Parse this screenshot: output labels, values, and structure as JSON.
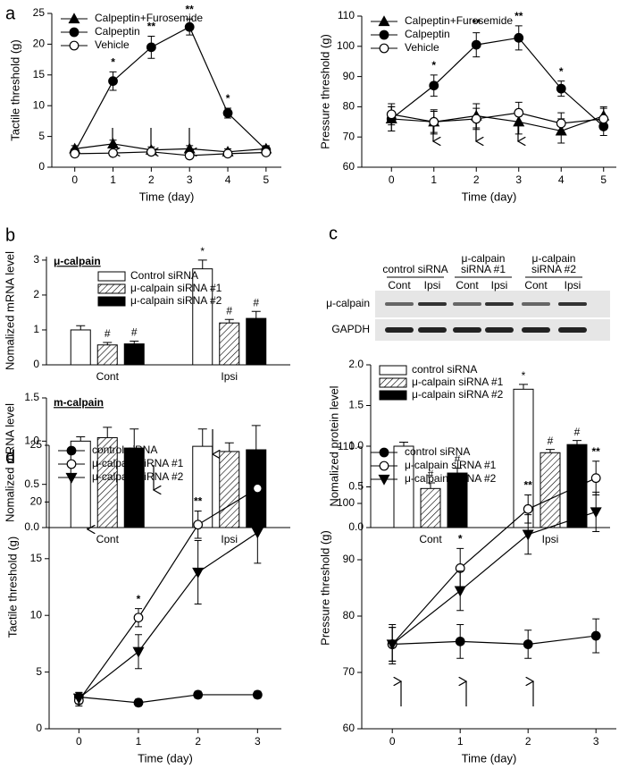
{
  "chart_data": [
    {
      "type": "line",
      "panel_label": "a",
      "ylabel": "Tactile threshold (g)",
      "xlabel": "Time (day)",
      "x": [
        0,
        1,
        2,
        3,
        4,
        5
      ],
      "xlim": [
        -0.6,
        5.4
      ],
      "xticks": [
        0,
        1,
        2,
        3,
        4,
        5
      ],
      "ylim": [
        0,
        25
      ],
      "yticks": [
        0,
        5,
        10,
        15,
        20,
        25
      ],
      "legend": "top-left",
      "series": [
        {
          "name": "Calpeptin+Furosemide",
          "color": "#000000",
          "marker": "triangle",
          "filled": true,
          "values": [
            3,
            3.8,
            2.8,
            3,
            2.5,
            3
          ],
          "errors": [
            0.5,
            0.6,
            0.5,
            0.5,
            0.5,
            0.5
          ],
          "annotations": [
            null,
            null,
            null,
            null,
            null,
            null
          ]
        },
        {
          "name": "Calpeptin",
          "color": "#000000",
          "marker": "circle",
          "filled": true,
          "values": [
            2.5,
            14,
            19.5,
            22.8,
            8.8,
            2.8
          ],
          "errors": [
            0.5,
            1.5,
            1.8,
            1.3,
            0.8,
            0.5
          ],
          "annotations": [
            null,
            "*",
            "**",
            "**",
            "*",
            null
          ]
        },
        {
          "name": "Vehicle",
          "color": "#000000",
          "marker": "circle",
          "filled": false,
          "values": [
            2.2,
            2.3,
            2.5,
            1.9,
            2.2,
            2.4
          ],
          "errors": [
            0.4,
            0.4,
            0.4,
            0.4,
            0.4,
            0.4
          ],
          "annotations": [
            null,
            null,
            null,
            null,
            null,
            null
          ]
        }
      ]
    },
    {
      "type": "line",
      "ylabel": "Pressure threshold (g)",
      "xlabel": "Time (day)",
      "x": [
        0,
        1,
        2,
        3,
        4,
        5
      ],
      "xlim": [
        -0.7,
        5.3
      ],
      "xticks": [
        0,
        1,
        2,
        3,
        4,
        5
      ],
      "ylim": [
        60,
        110
      ],
      "yticks": [
        60,
        70,
        80,
        90,
        100,
        110
      ],
      "legend": "top-left",
      "series": [
        {
          "name": "Calpeptin+Furosemide",
          "color": "#000000",
          "marker": "triangle",
          "filled": true,
          "values": [
            76,
            75,
            77,
            75,
            72,
            77
          ],
          "errors": [
            4,
            4,
            4,
            4,
            4,
            3
          ],
          "annotations": [
            null,
            null,
            null,
            null,
            null,
            null
          ]
        },
        {
          "name": "Calpeptin",
          "color": "#000000",
          "marker": "circle",
          "filled": true,
          "values": [
            76,
            87,
            100.5,
            102.8,
            86,
            73.5
          ],
          "errors": [
            4,
            3.5,
            4,
            4,
            2.5,
            3
          ],
          "annotations": [
            null,
            "*",
            "**",
            "**",
            "*",
            null
          ]
        },
        {
          "name": "Vehicle",
          "color": "#000000",
          "marker": "circle",
          "filled": false,
          "values": [
            77.5,
            75,
            76,
            78,
            74.5,
            76
          ],
          "errors": [
            3.5,
            3.5,
            3.5,
            3.5,
            3.5,
            3.5
          ],
          "annotations": [
            null,
            null,
            null,
            null,
            null,
            null
          ]
        }
      ]
    },
    {
      "type": "bar",
      "panel_label": "b",
      "title": "μ-calpain",
      "ylabel": "Nomalized mRNA level",
      "categories": [
        "Cont",
        "Ipsi"
      ],
      "ylim": [
        0,
        3.1
      ],
      "yticks": [
        0,
        1,
        2,
        3
      ],
      "legend": "top-left",
      "series": [
        {
          "name": "Control siRNA",
          "color": "#ffffff",
          "hatch": false,
          "values": [
            1.0,
            2.75
          ],
          "errors": [
            0.12,
            0.25
          ],
          "annotations": [
            null,
            "*"
          ]
        },
        {
          "name": "μ-calpain siRNA #1",
          "color": "#ffffff",
          "hatch": true,
          "values": [
            0.57,
            1.2
          ],
          "errors": [
            0.07,
            0.1
          ],
          "annotations": [
            "#",
            "#"
          ]
        },
        {
          "name": "μ-calpain siRNA #2",
          "color": "#000000",
          "hatch": false,
          "values": [
            0.6,
            1.33
          ],
          "errors": [
            0.08,
            0.2
          ],
          "annotations": [
            "#",
            "#"
          ]
        }
      ]
    },
    {
      "type": "bar",
      "title": "m-calpain",
      "ylabel": "Nomalized mRNA level",
      "categories": [
        "Cont",
        "Ipsi"
      ],
      "ylim": [
        0,
        1.5
      ],
      "yticks": [
        {
          "value": 0,
          "label": "0.0"
        },
        {
          "value": 0.5,
          "label": "0.5"
        },
        {
          "value": 1,
          "label": "1.0"
        },
        1.5
      ],
      "legend": false,
      "series": [
        {
          "color": "#ffffff",
          "hatch": false,
          "values": [
            1.0,
            0.94
          ],
          "errors": [
            0.05,
            0.2
          ]
        },
        {
          "color": "#ffffff",
          "hatch": true,
          "values": [
            1.04,
            0.88
          ],
          "errors": [
            0.12,
            0.1
          ]
        },
        {
          "color": "#000000",
          "hatch": false,
          "values": [
            0.92,
            0.9
          ],
          "errors": [
            0.22,
            0.28
          ]
        }
      ]
    },
    {
      "type": "bar",
      "panel_label": "c",
      "ylabel": "Nomalized protein level",
      "categories": [
        "Cont",
        "Ipsi"
      ],
      "ylim": [
        0,
        2.0
      ],
      "yticks": [
        {
          "value": 0,
          "label": "0.0"
        },
        {
          "value": 0.5,
          "label": "0.5"
        },
        {
          "value": 1,
          "label": "1.0"
        },
        1.5,
        {
          "value": 2,
          "label": "2.0"
        }
      ],
      "legend": "top-left",
      "series": [
        {
          "name": "control siRNA",
          "color": "#ffffff",
          "hatch": false,
          "values": [
            1.0,
            1.7
          ],
          "errors": [
            0.05,
            0.06
          ],
          "annotations": [
            null,
            "*"
          ]
        },
        {
          "name": "μ-calpain siRNA #1",
          "color": "#ffffff",
          "hatch": true,
          "values": [
            0.48,
            0.92
          ],
          "errors": [
            0.07,
            0.04
          ],
          "annotations": [
            "#",
            "#"
          ]
        },
        {
          "name": "μ-calpain siRNA #2",
          "color": "#000000",
          "hatch": false,
          "values": [
            0.67,
            1.02
          ],
          "errors": [
            0.06,
            0.05
          ],
          "annotations": [
            "#",
            "#"
          ]
        }
      ]
    },
    {
      "type": "line",
      "panel_label": "d",
      "ylabel": "Tactile threshold (g)",
      "xlabel": "Time (day)",
      "x": [
        0,
        1,
        2,
        3
      ],
      "xlim": [
        -0.5,
        3.4
      ],
      "xticks": [
        0,
        1,
        2,
        3
      ],
      "ylim": [
        0,
        25
      ],
      "yticks": [
        0,
        5,
        10,
        15,
        20,
        25
      ],
      "legend": "top-left",
      "series": [
        {
          "name": "control siRNA",
          "color": "#000000",
          "marker": "circle",
          "filled": true,
          "values": [
            2.8,
            2.3,
            3,
            3
          ],
          "errors": [
            0.4,
            0.3,
            0.3,
            0.3
          ],
          "annotations": [
            null,
            null,
            null,
            null
          ]
        },
        {
          "name": "μ-calpain siRNA #1",
          "color": "#000000",
          "marker": "circle",
          "filled": false,
          "values": [
            2.5,
            9.8,
            18,
            21.2
          ],
          "errors": [
            0.5,
            0.8,
            1.2,
            2
          ],
          "annotations": [
            null,
            "*",
            "**",
            "**"
          ]
        },
        {
          "name": "μ-calpain siRNA #2",
          "color": "#000000",
          "marker": "triangle-down",
          "filled": true,
          "values": [
            2.7,
            6.8,
            13.8,
            17.3
          ],
          "errors": [
            0.5,
            1.5,
            2.8,
            2.7
          ],
          "annotations": [
            null,
            null,
            null,
            null
          ]
        }
      ]
    },
    {
      "type": "line",
      "ylabel": "Pressure threshold (g)",
      "xlabel": "Time (day)",
      "x": [
        0,
        1,
        2,
        3
      ],
      "xlim": [
        -0.45,
        3.3
      ],
      "xticks": [
        0,
        1,
        2,
        3
      ],
      "ylim": [
        60,
        110
      ],
      "yticks": [
        60,
        70,
        80,
        90,
        100,
        110
      ],
      "legend": "top-left",
      "series": [
        {
          "name": "control siRNA",
          "color": "#000000",
          "marker": "circle",
          "filled": true,
          "values": [
            75,
            75.5,
            75,
            76.5
          ],
          "errors": [
            3,
            3,
            2.5,
            3
          ],
          "annotations": [
            null,
            null,
            null,
            null
          ]
        },
        {
          "name": "μ-calpain siRNA #1",
          "color": "#000000",
          "marker": "circle",
          "filled": false,
          "values": [
            75,
            88.5,
            99,
            104.5
          ],
          "errors": [
            3.5,
            3.5,
            2.5,
            3
          ],
          "annotations": [
            null,
            "*",
            "**",
            "**"
          ]
        },
        {
          "name": "μ-calpain siRNA #2",
          "color": "#000000",
          "marker": "triangle-down",
          "filled": true,
          "values": [
            75,
            84.5,
            94.5,
            98.5
          ],
          "errors": [
            3,
            3.5,
            3.5,
            3.5
          ],
          "annotations": [
            null,
            null,
            null,
            null
          ]
        }
      ]
    }
  ],
  "blot": {
    "groups": [
      [
        "control siRNA"
      ],
      [
        "μ-calpain",
        "siRNA #1"
      ],
      [
        "μ-calpain",
        "siRNA #2"
      ]
    ],
    "lanes": [
      "Cont",
      "Ipsi",
      "Cont",
      "Ipsi",
      "Cont",
      "Ipsi"
    ],
    "rows": [
      "μ-calpain",
      "GAPDH"
    ]
  }
}
